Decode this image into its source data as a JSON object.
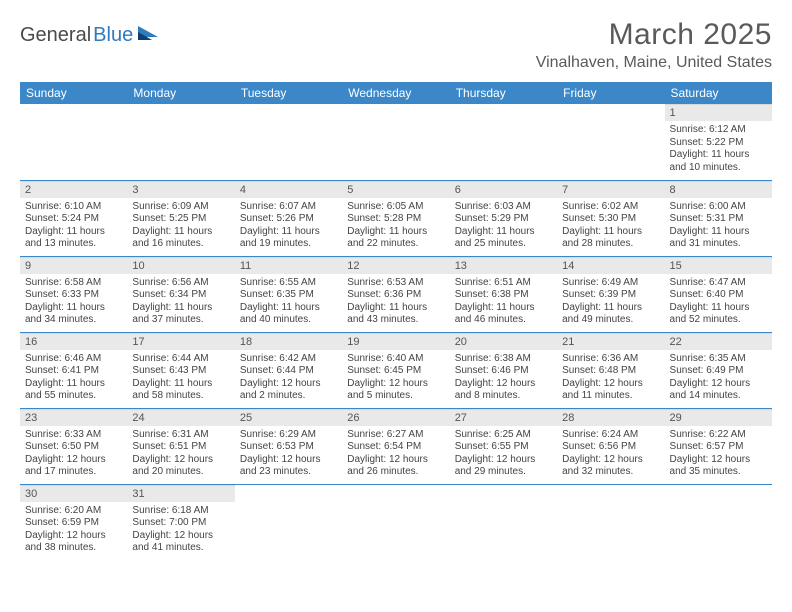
{
  "logo": {
    "part1": "General",
    "part2": "Blue"
  },
  "title": "March 2025",
  "location": "Vinalhaven, Maine, United States",
  "colors": {
    "header_bg": "#3b87c8",
    "header_text": "#ffffff",
    "daynum_bg": "#e9e9e9",
    "rule": "#3b87c8",
    "text": "#444444"
  },
  "weekdays": [
    "Sunday",
    "Monday",
    "Tuesday",
    "Wednesday",
    "Thursday",
    "Friday",
    "Saturday"
  ],
  "weeks": [
    [
      null,
      null,
      null,
      null,
      null,
      null,
      {
        "n": "1",
        "sunrise": "6:12 AM",
        "sunset": "5:22 PM",
        "daylight": "11 hours and 10 minutes."
      }
    ],
    [
      {
        "n": "2",
        "sunrise": "6:10 AM",
        "sunset": "5:24 PM",
        "daylight": "11 hours and 13 minutes."
      },
      {
        "n": "3",
        "sunrise": "6:09 AM",
        "sunset": "5:25 PM",
        "daylight": "11 hours and 16 minutes."
      },
      {
        "n": "4",
        "sunrise": "6:07 AM",
        "sunset": "5:26 PM",
        "daylight": "11 hours and 19 minutes."
      },
      {
        "n": "5",
        "sunrise": "6:05 AM",
        "sunset": "5:28 PM",
        "daylight": "11 hours and 22 minutes."
      },
      {
        "n": "6",
        "sunrise": "6:03 AM",
        "sunset": "5:29 PM",
        "daylight": "11 hours and 25 minutes."
      },
      {
        "n": "7",
        "sunrise": "6:02 AM",
        "sunset": "5:30 PM",
        "daylight": "11 hours and 28 minutes."
      },
      {
        "n": "8",
        "sunrise": "6:00 AM",
        "sunset": "5:31 PM",
        "daylight": "11 hours and 31 minutes."
      }
    ],
    [
      {
        "n": "9",
        "sunrise": "6:58 AM",
        "sunset": "6:33 PM",
        "daylight": "11 hours and 34 minutes."
      },
      {
        "n": "10",
        "sunrise": "6:56 AM",
        "sunset": "6:34 PM",
        "daylight": "11 hours and 37 minutes."
      },
      {
        "n": "11",
        "sunrise": "6:55 AM",
        "sunset": "6:35 PM",
        "daylight": "11 hours and 40 minutes."
      },
      {
        "n": "12",
        "sunrise": "6:53 AM",
        "sunset": "6:36 PM",
        "daylight": "11 hours and 43 minutes."
      },
      {
        "n": "13",
        "sunrise": "6:51 AM",
        "sunset": "6:38 PM",
        "daylight": "11 hours and 46 minutes."
      },
      {
        "n": "14",
        "sunrise": "6:49 AM",
        "sunset": "6:39 PM",
        "daylight": "11 hours and 49 minutes."
      },
      {
        "n": "15",
        "sunrise": "6:47 AM",
        "sunset": "6:40 PM",
        "daylight": "11 hours and 52 minutes."
      }
    ],
    [
      {
        "n": "16",
        "sunrise": "6:46 AM",
        "sunset": "6:41 PM",
        "daylight": "11 hours and 55 minutes."
      },
      {
        "n": "17",
        "sunrise": "6:44 AM",
        "sunset": "6:43 PM",
        "daylight": "11 hours and 58 minutes."
      },
      {
        "n": "18",
        "sunrise": "6:42 AM",
        "sunset": "6:44 PM",
        "daylight": "12 hours and 2 minutes."
      },
      {
        "n": "19",
        "sunrise": "6:40 AM",
        "sunset": "6:45 PM",
        "daylight": "12 hours and 5 minutes."
      },
      {
        "n": "20",
        "sunrise": "6:38 AM",
        "sunset": "6:46 PM",
        "daylight": "12 hours and 8 minutes."
      },
      {
        "n": "21",
        "sunrise": "6:36 AM",
        "sunset": "6:48 PM",
        "daylight": "12 hours and 11 minutes."
      },
      {
        "n": "22",
        "sunrise": "6:35 AM",
        "sunset": "6:49 PM",
        "daylight": "12 hours and 14 minutes."
      }
    ],
    [
      {
        "n": "23",
        "sunrise": "6:33 AM",
        "sunset": "6:50 PM",
        "daylight": "12 hours and 17 minutes."
      },
      {
        "n": "24",
        "sunrise": "6:31 AM",
        "sunset": "6:51 PM",
        "daylight": "12 hours and 20 minutes."
      },
      {
        "n": "25",
        "sunrise": "6:29 AM",
        "sunset": "6:53 PM",
        "daylight": "12 hours and 23 minutes."
      },
      {
        "n": "26",
        "sunrise": "6:27 AM",
        "sunset": "6:54 PM",
        "daylight": "12 hours and 26 minutes."
      },
      {
        "n": "27",
        "sunrise": "6:25 AM",
        "sunset": "6:55 PM",
        "daylight": "12 hours and 29 minutes."
      },
      {
        "n": "28",
        "sunrise": "6:24 AM",
        "sunset": "6:56 PM",
        "daylight": "12 hours and 32 minutes."
      },
      {
        "n": "29",
        "sunrise": "6:22 AM",
        "sunset": "6:57 PM",
        "daylight": "12 hours and 35 minutes."
      }
    ],
    [
      {
        "n": "30",
        "sunrise": "6:20 AM",
        "sunset": "6:59 PM",
        "daylight": "12 hours and 38 minutes."
      },
      {
        "n": "31",
        "sunrise": "6:18 AM",
        "sunset": "7:00 PM",
        "daylight": "12 hours and 41 minutes."
      },
      null,
      null,
      null,
      null,
      null
    ]
  ]
}
